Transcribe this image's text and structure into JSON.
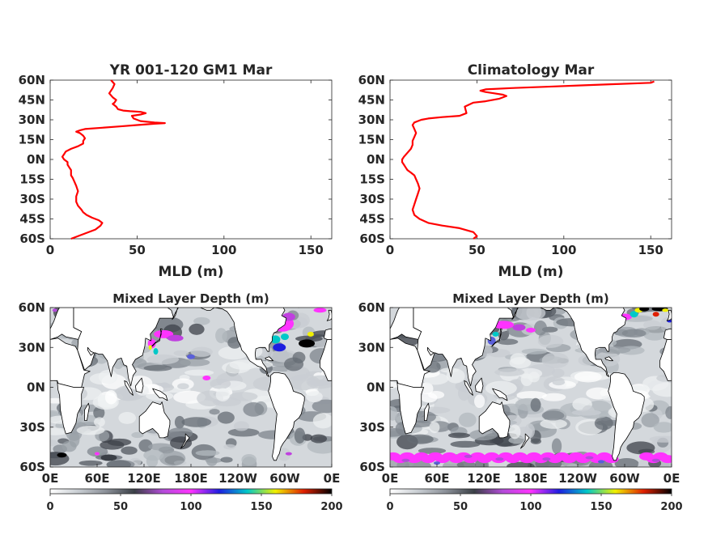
{
  "chart_data": [
    {
      "type": "line",
      "title": "YR 001-120 GM1 Mar",
      "xlabel": "MLD (m)",
      "ylabel": "",
      "xlim": [
        0,
        162
      ],
      "ylim": [
        -60,
        60
      ],
      "xticks": [
        0,
        50,
        100,
        150
      ],
      "yticks": [
        60,
        45,
        30,
        15,
        0,
        -15,
        -30,
        -45,
        -60
      ],
      "ytick_labels": [
        "60N",
        "45N",
        "30N",
        "15N",
        "0N",
        "15S",
        "30S",
        "45S",
        "60S"
      ],
      "line_color": "#ff0000",
      "series": [
        {
          "x": [
            12,
            20,
            26,
            29,
            30,
            28,
            24,
            21,
            19,
            18,
            16,
            15,
            15,
            16,
            15,
            14,
            13,
            12,
            12,
            12,
            11,
            10,
            10,
            8,
            7,
            8,
            9,
            12,
            16,
            19,
            19,
            20,
            19,
            17,
            15,
            17,
            20,
            30,
            40,
            50,
            60,
            66,
            60,
            52,
            48,
            47,
            52,
            55,
            52,
            46,
            42,
            39,
            38,
            36,
            37,
            38,
            36,
            34,
            36,
            37,
            35
          ],
          "y": [
            -60,
            -56,
            -53,
            -50,
            -48,
            -46,
            -44,
            -42,
            -40,
            -38,
            -35,
            -32,
            -28,
            -24,
            -20,
            -17,
            -14,
            -12,
            -10,
            -8,
            -6,
            -4,
            -2,
            0,
            2,
            4,
            6,
            8,
            10,
            12,
            14,
            16,
            18,
            20,
            21,
            22,
            23,
            24,
            25,
            26,
            27,
            27.5,
            28,
            29,
            31,
            33,
            34,
            35,
            36,
            36.5,
            37,
            38,
            40,
            42,
            43,
            45,
            47,
            50,
            54,
            57,
            60
          ]
        }
      ]
    },
    {
      "type": "line",
      "title": "Climatology Mar",
      "xlabel": "MLD (m)",
      "ylabel": "",
      "xlim": [
        0,
        162
      ],
      "ylim": [
        -60,
        60
      ],
      "xticks": [
        0,
        50,
        100,
        150
      ],
      "yticks": [
        60,
        45,
        30,
        15,
        0,
        -15,
        -30,
        -45,
        -60
      ],
      "ytick_labels": [
        "60N",
        "45N",
        "30N",
        "15N",
        "0N",
        "15S",
        "30S",
        "45S",
        "60S"
      ],
      "line_color": "#ff0000",
      "series": [
        {
          "x": [
            48,
            50,
            48,
            40,
            30,
            22,
            17,
            14,
            13,
            14,
            15,
            16,
            17,
            16,
            15,
            14,
            12,
            10,
            9,
            8,
            7,
            7,
            8,
            10,
            12,
            13,
            13,
            14,
            15,
            14,
            13,
            14,
            16,
            18,
            22,
            30,
            40,
            44,
            43,
            48,
            55,
            63,
            67,
            65,
            60,
            55,
            52,
            55,
            70,
            90,
            110,
            130,
            150,
            152
          ],
          "y": [
            -60,
            -58,
            -55,
            -52,
            -50,
            -48,
            -45,
            -42,
            -38,
            -34,
            -30,
            -26,
            -22,
            -18,
            -15,
            -12,
            -10,
            -8,
            -6,
            -4,
            -2,
            0,
            2,
            5,
            8,
            11,
            14,
            17,
            20,
            23,
            26,
            28,
            29,
            30,
            31,
            32,
            33,
            35,
            40,
            43,
            44,
            46,
            48,
            49,
            50,
            51,
            52,
            53,
            54,
            55,
            56,
            57,
            58,
            59
          ]
        }
      ]
    },
    {
      "type": "heatmap",
      "title": "Mixed Layer Depth (m)",
      "xlabel": "",
      "ylabel": "",
      "xticks": [
        "0E",
        "60E",
        "120E",
        "180E",
        "120W",
        "60W",
        "0E"
      ],
      "yticks": [
        "60N",
        "30N",
        "0N",
        "30S",
        "60S"
      ],
      "colorbar": {
        "range": [
          0,
          200
        ],
        "ticks": [
          "0",
          "50",
          "100",
          "150",
          "200"
        ],
        "colors": [
          "#ffffff",
          "#c8cdd2",
          "#8a8f97",
          "#3a3f46",
          "#b24cd8",
          "#ff33ff",
          "#1e1ee0",
          "#00c8c8",
          "#f0f000",
          "#e02000",
          "#000000"
        ]
      }
    },
    {
      "type": "heatmap",
      "title": "Mixed Layer Depth (m)",
      "xlabel": "",
      "ylabel": "",
      "xticks": [
        "0E",
        "60E",
        "120E",
        "180E",
        "120W",
        "60W",
        "0E"
      ],
      "yticks": [
        "60N",
        "30N",
        "0N",
        "30S",
        "60S"
      ],
      "colorbar": {
        "range": [
          0,
          200
        ],
        "ticks": [
          "0",
          "50",
          "100",
          "150",
          "200"
        ],
        "colors": [
          "#ffffff",
          "#c8cdd2",
          "#8a8f97",
          "#3a3f46",
          "#b24cd8",
          "#ff33ff",
          "#1e1ee0",
          "#00c8c8",
          "#f0f000",
          "#e02000",
          "#000000"
        ]
      }
    }
  ]
}
